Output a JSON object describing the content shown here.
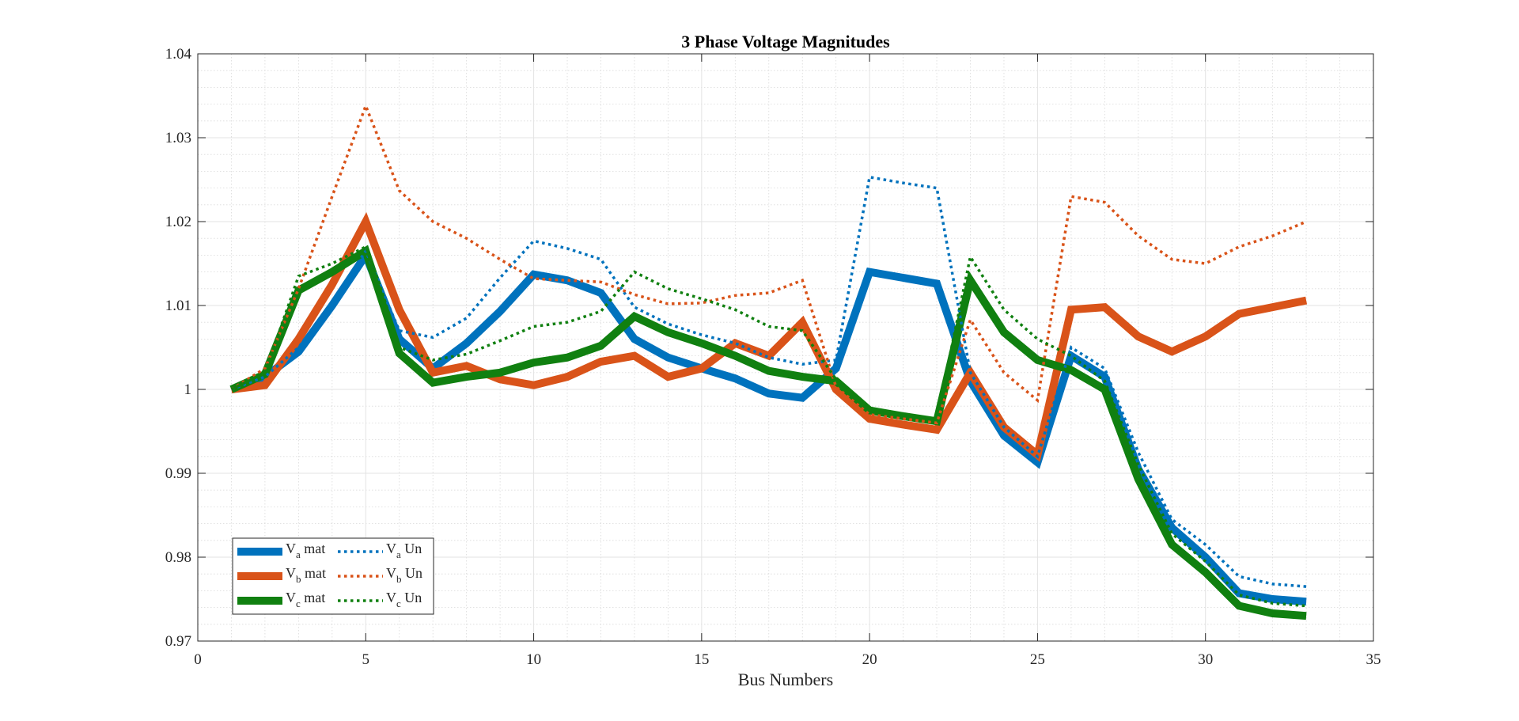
{
  "chart_data": {
    "type": "line",
    "title": "3 Phase Voltage Magnitudes",
    "xlabel": "Bus Numbers",
    "ylabel": "",
    "xlim": [
      0,
      35
    ],
    "ylim": [
      0.97,
      1.04
    ],
    "xticks": [
      0,
      5,
      10,
      15,
      20,
      25,
      30,
      35
    ],
    "yticks": [
      0.97,
      0.98,
      0.99,
      1,
      1.01,
      1.02,
      1.03,
      1.04
    ],
    "xtick_labels": [
      "0",
      "5",
      "10",
      "15",
      "20",
      "25",
      "30",
      "35"
    ],
    "ytick_labels": [
      "0.97",
      "0.98",
      "0.99",
      "1",
      "1.01",
      "1.02",
      "1.03",
      "1.04"
    ],
    "grid": true,
    "minor_grid": true,
    "legend_location": "bottom-left",
    "x": [
      1,
      2,
      3,
      4,
      5,
      6,
      7,
      8,
      9,
      10,
      11,
      12,
      13,
      14,
      15,
      16,
      17,
      18,
      19,
      20,
      21,
      22,
      23,
      24,
      25,
      26,
      27,
      28,
      29,
      30,
      31,
      32,
      33
    ],
    "series": [
      {
        "name": "Va mat",
        "label_main": "V",
        "label_sub": "a",
        "label_suffix": " mat",
        "color": "#0072BD",
        "style": "solid",
        "values": [
          1.0,
          1.0015,
          1.0045,
          1.01,
          1.016,
          1.006,
          1.0025,
          1.0055,
          1.0093,
          1.0137,
          1.013,
          1.0115,
          1.006,
          1.0038,
          1.0025,
          1.0013,
          0.9995,
          0.999,
          1.0025,
          1.014,
          1.0133,
          1.0126,
          1.001,
          0.9945,
          0.9913,
          1.004,
          1.0015,
          0.9905,
          0.9835,
          0.98,
          0.9757,
          0.975,
          0.9747
        ]
      },
      {
        "name": "Vb mat",
        "label_main": "V",
        "label_sub": "b",
        "label_suffix": " mat",
        "color": "#D95319",
        "style": "solid",
        "values": [
          1.0,
          1.0005,
          1.006,
          1.0125,
          1.02,
          1.0095,
          1.002,
          1.0028,
          1.0012,
          1.0005,
          1.0015,
          1.0033,
          1.004,
          1.0015,
          1.0025,
          1.0055,
          1.004,
          1.008,
          1.0,
          0.9965,
          0.9958,
          0.9952,
          1.002,
          0.9955,
          0.9922,
          1.0095,
          1.0098,
          1.0063,
          1.0045,
          1.0063,
          1.009,
          1.0098,
          1.0106
        ]
      },
      {
        "name": "Vc mat",
        "label_main": "V",
        "label_sub": "c",
        "label_suffix": " mat",
        "color": "#108010",
        "style": "solid",
        "values": [
          1.0,
          1.0018,
          1.0118,
          1.014,
          1.0165,
          1.0043,
          1.0008,
          1.0015,
          1.002,
          1.0032,
          1.0038,
          1.0052,
          1.0087,
          1.0068,
          1.0055,
          1.004,
          1.0022,
          1.0015,
          1.001,
          0.9975,
          0.9968,
          0.9962,
          1.013,
          1.0068,
          1.0035,
          1.0023,
          1.0,
          0.9893,
          0.9815,
          0.9782,
          0.9742,
          0.9733,
          0.973
        ]
      },
      {
        "name": "Va Un",
        "label_main": "V",
        "label_sub": "a",
        "label_suffix": " Un",
        "color": "#0072BD",
        "style": "dotted",
        "values": [
          1.0,
          1.0015,
          1.005,
          1.0105,
          1.0165,
          1.007,
          1.0062,
          1.0085,
          1.0133,
          1.0177,
          1.0168,
          1.0155,
          1.0098,
          1.0078,
          1.0065,
          1.0055,
          1.0038,
          1.003,
          1.0035,
          1.0253,
          1.0246,
          1.024,
          1.002,
          0.9955,
          0.992,
          1.005,
          1.0025,
          0.9925,
          0.9845,
          0.9815,
          0.9777,
          0.9768,
          0.9765
        ]
      },
      {
        "name": "Vb Un",
        "label_main": "V",
        "label_sub": "b",
        "label_suffix": " Un",
        "color": "#D95319",
        "style": "dotted",
        "values": [
          1.0,
          1.0025,
          1.012,
          1.023,
          1.0338,
          1.0237,
          1.02,
          1.018,
          1.0155,
          1.0132,
          1.013,
          1.0128,
          1.0113,
          1.0102,
          1.0103,
          1.0112,
          1.0115,
          1.013,
          1.0003,
          0.997,
          0.9965,
          0.996,
          1.0083,
          1.002,
          0.9987,
          1.023,
          1.0223,
          1.0183,
          1.0155,
          1.015,
          1.017,
          1.0183,
          1.02
        ]
      },
      {
        "name": "Vc Un",
        "label_main": "V",
        "label_sub": "c",
        "label_suffix": " Un",
        "color": "#108010",
        "style": "dotted",
        "values": [
          1.0,
          1.002,
          1.0135,
          1.015,
          1.017,
          1.005,
          1.0035,
          1.0042,
          1.0058,
          1.0075,
          1.008,
          1.0093,
          1.014,
          1.012,
          1.0108,
          1.0095,
          1.0075,
          1.007,
          1.0012,
          0.9977,
          0.997,
          0.9965,
          1.0158,
          1.0095,
          1.006,
          1.004,
          1.001,
          0.991,
          0.9828,
          0.9795,
          0.9755,
          0.9745,
          0.9742
        ]
      }
    ]
  }
}
